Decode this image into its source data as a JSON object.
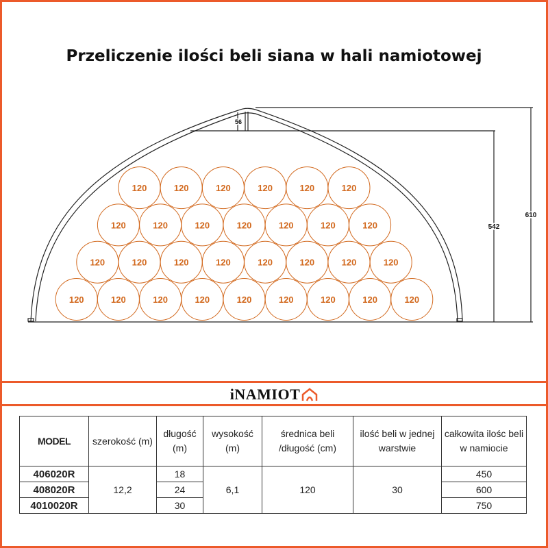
{
  "title": "Przeliczenie ilości beli siana w hali namiotowej",
  "drawing": {
    "bale_label": "120",
    "bale_rows": [
      6,
      7,
      8,
      9
    ],
    "dimensions": {
      "truss": "56",
      "inner_height": "542",
      "total_height": "610"
    },
    "colors": {
      "bale": "#d2691e",
      "line": "#222222",
      "accent": "#ec5a2a"
    }
  },
  "logo": {
    "text": "iNAMIOT",
    "icon": "tent-house-icon"
  },
  "table": {
    "headers": [
      "MODEL",
      "szerokość (m)",
      "długość (m)",
      "wysokość (m)",
      "średnica beli /długość (cm)",
      "ilość beli w jednej warstwie",
      "całkowita ilośc beli w namiocie"
    ],
    "models": [
      "406020R",
      "408020R",
      "4010020R"
    ],
    "width": "12,2",
    "lengths": [
      "18",
      "24",
      "30"
    ],
    "height": "6,1",
    "bale_diameter": "120",
    "bales_per_layer": "30",
    "totals": [
      "450",
      "600",
      "750"
    ]
  }
}
